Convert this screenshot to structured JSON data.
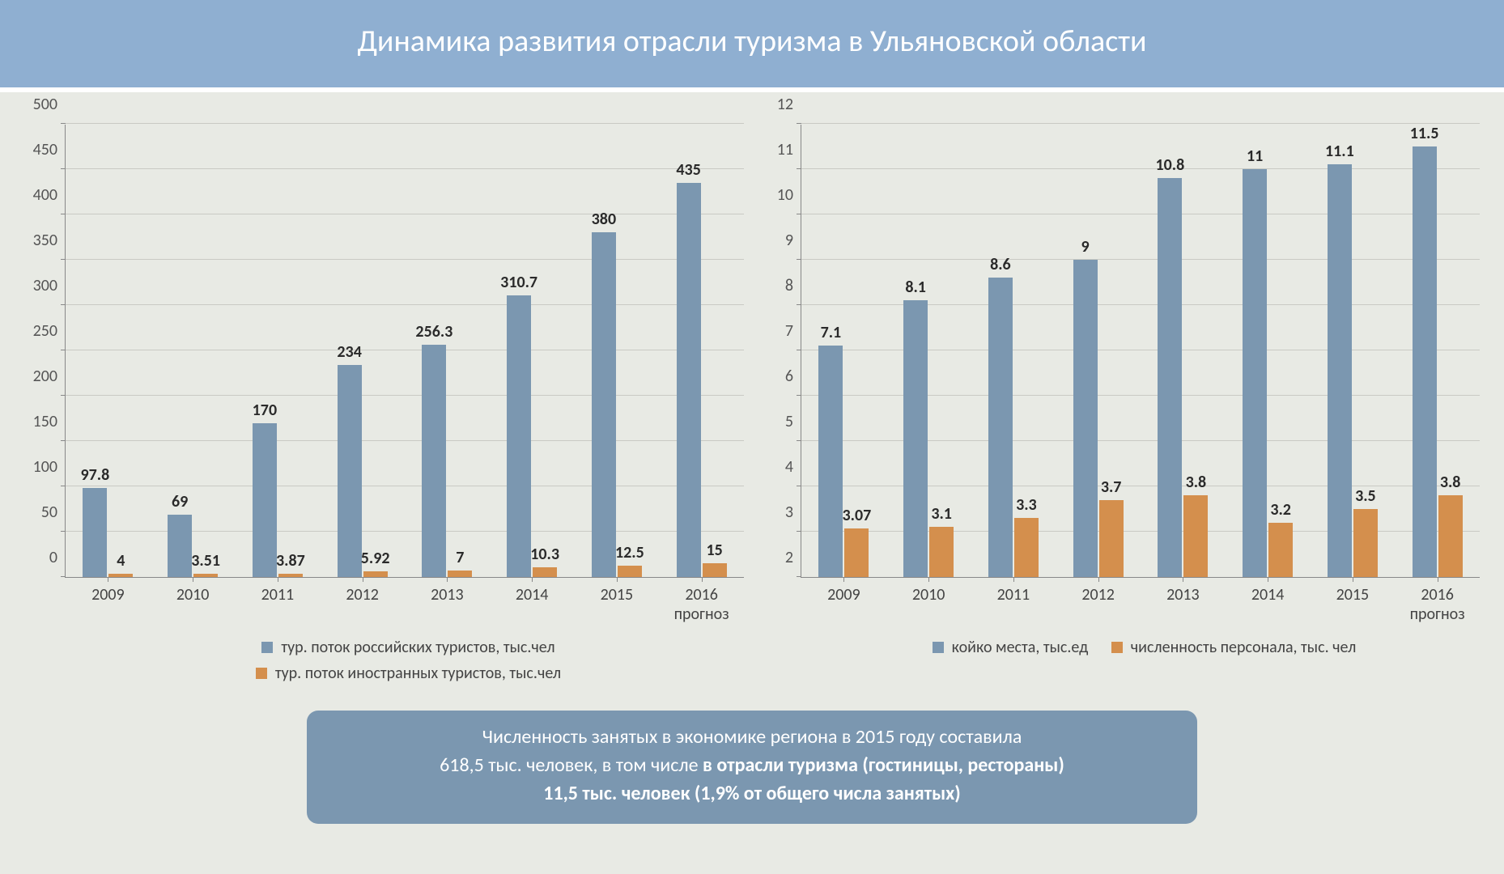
{
  "title": "Динамика развития отрасли туризма в Ульяновской области",
  "colors": {
    "series_a": "#7b97b0",
    "series_b": "#d48f4d",
    "grid": "#c9cac4",
    "bg": "#e8eae4",
    "title_bg": "#8fafd1",
    "footer_bg": "#7b97b0",
    "text": "#444444"
  },
  "chart1": {
    "type": "bar",
    "ymin": 0,
    "ymax": 500,
    "ytick_step": 50,
    "categories": [
      "2009",
      "2010",
      "2011",
      "2012",
      "2013",
      "2014",
      "2015",
      "2016\nпрогноз"
    ],
    "series_a": {
      "label": "тур. поток российских туристов, тыс.чел",
      "values": [
        97.8,
        69,
        170,
        234,
        256.3,
        310.7,
        380,
        435
      ],
      "labels": [
        "97.8",
        "69",
        "170",
        "234",
        "256.3",
        "310.7",
        "380",
        "435"
      ]
    },
    "series_b": {
      "label": "тур. поток иностранных туристов, тыс.чел",
      "values": [
        4,
        3.51,
        3.87,
        5.92,
        7,
        10.3,
        12.5,
        15
      ],
      "labels": [
        "4",
        "3.51",
        "3.87",
        "5.92",
        "7",
        "10.3",
        "12.5",
        "15"
      ]
    }
  },
  "chart2": {
    "type": "bar",
    "ymin": 2,
    "ymax": 12,
    "ytick_step": 1,
    "categories": [
      "2009",
      "2010",
      "2011",
      "2012",
      "2013",
      "2014",
      "2015",
      "2016\nпрогноз"
    ],
    "series_a": {
      "label": "койко места, тыс.ед",
      "values": [
        7.1,
        8.1,
        8.6,
        9,
        10.8,
        11,
        11.1,
        11.5
      ],
      "labels": [
        "7.1",
        "8.1",
        "8.6",
        "9",
        "10.8",
        "11",
        "11.1",
        "11.5"
      ]
    },
    "series_b": {
      "label": "численность персонала, тыс. чел",
      "values": [
        3.07,
        3.1,
        3.3,
        3.7,
        3.8,
        3.2,
        3.5,
        3.8
      ],
      "labels": [
        "3.07",
        "3.1",
        "3.3",
        "3.7",
        "3.8",
        "3.2",
        "3.5",
        "3.8"
      ]
    }
  },
  "footer": {
    "line1": "Численность занятых в экономике региона в 2015 году составила",
    "line2_a": "618,5 тыс. человек, в том числе ",
    "line2_b": "в отрасли туризма (гостиницы, рестораны)",
    "line3": "11,5 тыс. человек (1,9% от общего числа занятых)"
  }
}
